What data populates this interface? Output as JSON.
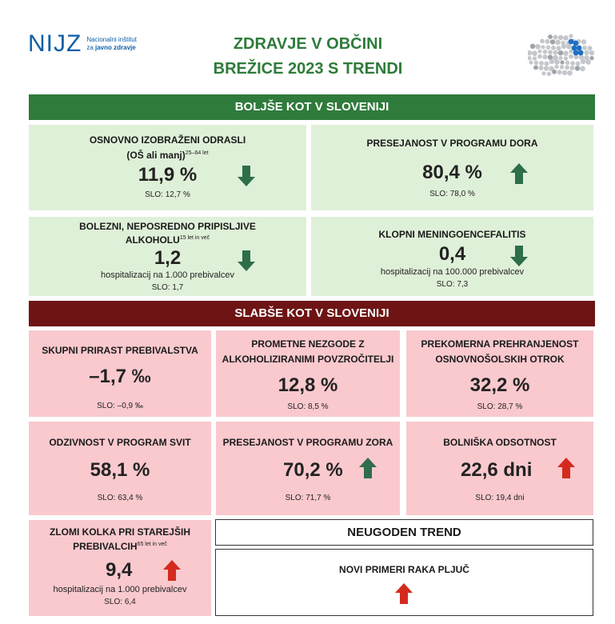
{
  "logo": {
    "mark": "NIJZ",
    "line1": "Nacionalni inštitut",
    "line2_prefix": "za ",
    "line2_bold": "javno zdravje"
  },
  "title": {
    "line1": "ZDRAVJE V OBČINI",
    "line2": "BREŽICE 2023 S TRENDI"
  },
  "better": {
    "header": "BOLJŠE KOT V SLOVENIJI",
    "items": [
      {
        "label": "OSNOVNO IZOBRAŽENI ODRASLI",
        "label2": "(OŠ ali manj)",
        "sup": "25–64 let",
        "value": "11,9 %",
        "unit": "",
        "slo": "SLO: 12,7 %",
        "trend": "down"
      },
      {
        "label": "PRESEJANOST V PROGRAMU DORA",
        "label2": "",
        "sup": "",
        "value": "80,4 %",
        "unit": "",
        "slo": "SLO: 78,0 %",
        "trend": "up"
      },
      {
        "label": "BOLEZNI, NEPOSREDNO PRIPISLJIVE",
        "label2": "ALKOHOLU",
        "sup": "15 let in več",
        "value": "1,2",
        "unit": "hospitalizacij na 1.000 prebivalcev",
        "slo": "SLO: 1,7",
        "trend": "down"
      },
      {
        "label": "KLOPNI MENINGOENCEFALITIS",
        "label2": "",
        "sup": "",
        "value": "0,4",
        "unit": "hospitalizacij na 100.000 prebivalcev",
        "slo": "SLO: 7,3",
        "trend": "down"
      }
    ]
  },
  "worse": {
    "header": "SLABŠE KOT V SLOVENIJI",
    "items": [
      {
        "label": "SKUPNI PRIRAST PREBIVALSTVA",
        "label2": "",
        "sup": "",
        "value": "–1,7 ‰",
        "unit": "",
        "slo": "SLO: –0,9 ‰",
        "trend": ""
      },
      {
        "label": "PROMETNE NEZGODE Z",
        "label2": "ALKOHOLIZIRANIMI POVZROČITELJI",
        "sup": "",
        "value": "12,8 %",
        "unit": "",
        "slo": "SLO: 8,5 %",
        "trend": ""
      },
      {
        "label": "PREKOMERNA PREHRANJENOST",
        "label2": "OSNOVNOŠOLSKIH OTROK",
        "sup": "",
        "value": "32,2 %",
        "unit": "",
        "slo": "SLO: 28,7 %",
        "trend": ""
      },
      {
        "label": "ODZIVNOST V PROGRAM SVIT",
        "label2": "",
        "sup": "",
        "value": "58,1 %",
        "unit": "",
        "slo": "SLO: 63,4 %",
        "trend": ""
      },
      {
        "label": "PRESEJANOST V PROGRAMU ZORA",
        "label2": "",
        "sup": "",
        "value": "70,2 %",
        "unit": "",
        "slo": "SLO: 71,7 %",
        "trend": "up-green"
      },
      {
        "label": "BOLNIŠKA ODSOTNOST",
        "label2": "",
        "sup": "",
        "value": "22,6 dni",
        "unit": "",
        "slo": "SLO: 19,4 dni",
        "trend": "up-red"
      },
      {
        "label": "ZLOMI KOLKA PRI STAREJŠIH",
        "label2": "PREBIVALCIH",
        "sup": "65 let in več",
        "value": "9,4",
        "unit": "hospitalizacij na 1.000 prebivalcev",
        "slo": "SLO: 6,4",
        "trend": "up-red"
      }
    ]
  },
  "unfavourable_trend": {
    "header": "NEUGODEN TREND",
    "item_label": "NOVI PRIMERI RAKA PLJUČ",
    "trend": "up-red"
  },
  "colors": {
    "green_band": "#2f7b3b",
    "red_band": "#6e1414",
    "good_card": "#dff0d8",
    "bad_card": "#f9c9ce",
    "arrow_green": "#2e6e4a",
    "arrow_red": "#d42a1e",
    "title": "#2e7b3a"
  },
  "icons": {
    "down_arrow": "arrow-down-icon",
    "up_arrow": "arrow-up-icon",
    "map": "slovenia-map-icon"
  }
}
